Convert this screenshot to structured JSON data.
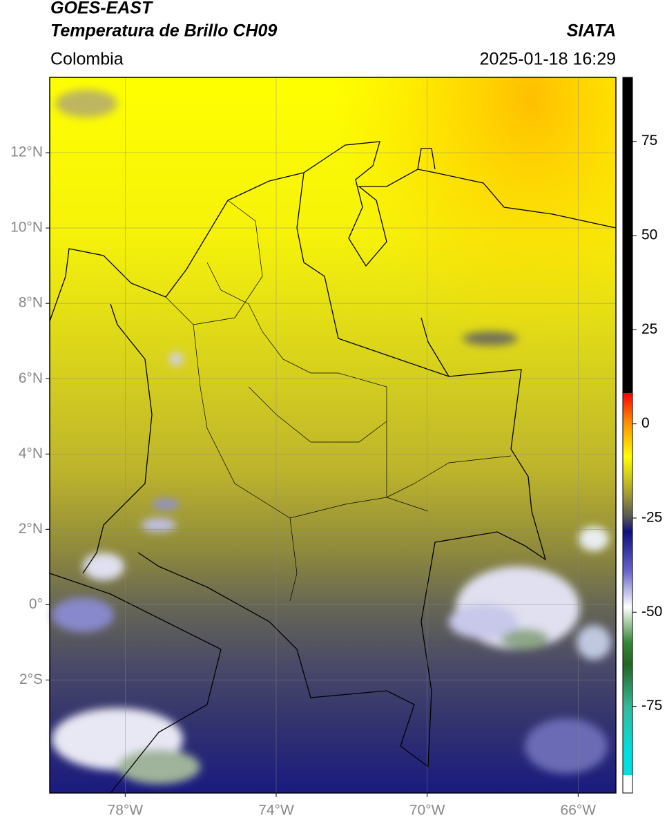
{
  "chart_data": {
    "type": "map",
    "title": "GOES-EAST",
    "subtitle": "Temperatura de Brillo CH09",
    "source": "SIATA",
    "region": "Colombia",
    "datetime": "2025-01-18 16:29",
    "xlim": [
      -80,
      -65
    ],
    "ylim": [
      -5,
      14
    ],
    "xticks": [
      {
        "value": -78,
        "label": "78°W"
      },
      {
        "value": -74,
        "label": "74°W"
      },
      {
        "value": -70,
        "label": "70°W"
      },
      {
        "value": -66,
        "label": "66°W"
      }
    ],
    "yticks": [
      {
        "value": 12,
        "label": "12°N"
      },
      {
        "value": 10,
        "label": "10°N"
      },
      {
        "value": 8,
        "label": "8°N"
      },
      {
        "value": 6,
        "label": "6°N"
      },
      {
        "value": 4,
        "label": "4°N"
      },
      {
        "value": 2,
        "label": "2°N"
      },
      {
        "value": 0,
        "label": "0°"
      },
      {
        "value": -2,
        "label": "2°S"
      }
    ],
    "grid": true,
    "colorbar": {
      "lim": [
        -98,
        92
      ],
      "ticks": [
        75,
        50,
        25,
        0,
        -25,
        -50,
        -75
      ]
    }
  }
}
